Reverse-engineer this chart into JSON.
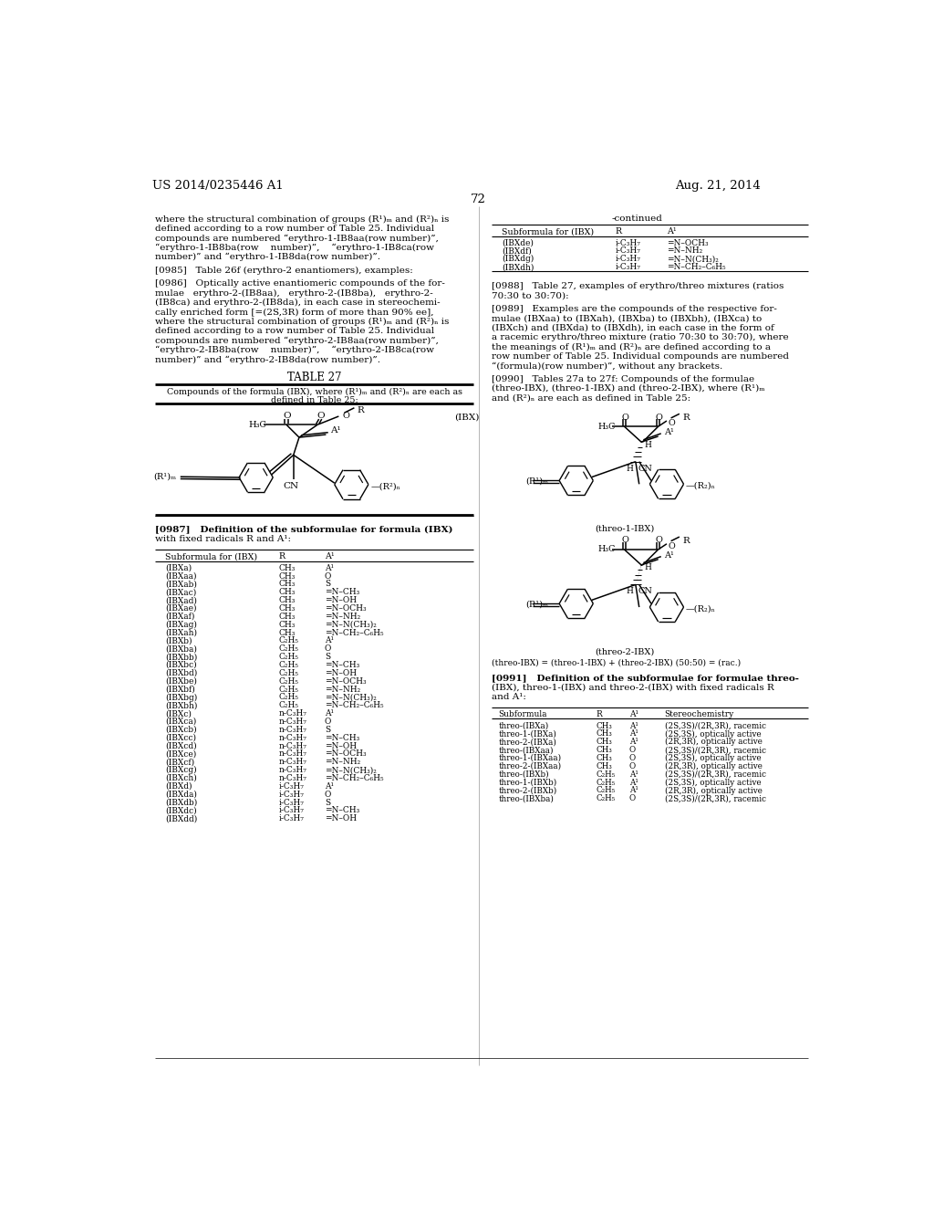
{
  "page_header_left": "US 2014/0235446 A1",
  "page_header_right": "Aug. 21, 2014",
  "page_number": "72",
  "background_color": "#ffffff",
  "left_paragraphs": [
    "where the structural combination of groups (R¹)ₘ and (R²)ₙ is",
    "defined according to a row number of Table 25. Individual",
    "compounds are numbered “erythro-1-IB8aa(row number)”,",
    "“erythro-1-IB8ba(row    number)”,    “erythro-1-IB8ca(row",
    "number)” and “erythro-1-IB8da(row number)”."
  ],
  "ibx_table_rows": [
    [
      "(IBXa)",
      "CH₃",
      "A¹"
    ],
    [
      "(IBXaa)",
      "CH₃",
      "O"
    ],
    [
      "(IBXab)",
      "CH₃",
      "S"
    ],
    [
      "(IBXac)",
      "CH₃",
      "=N–CH₃"
    ],
    [
      "(IBXad)",
      "CH₃",
      "=N–OH"
    ],
    [
      "(IBXae)",
      "CH₃",
      "=N–OCH₃"
    ],
    [
      "(IBXaf)",
      "CH₃",
      "=N–NH₂"
    ],
    [
      "(IBXag)",
      "CH₃",
      "=N–N(CH₃)₂"
    ],
    [
      "(IBXah)",
      "CH₃",
      "=N–CH₂–C₆H₅"
    ],
    [
      "(IBXb)",
      "C₂H₅",
      "A¹"
    ],
    [
      "(IBXba)",
      "C₂H₅",
      "O"
    ],
    [
      "(IBXbb)",
      "C₂H₅",
      "S"
    ],
    [
      "(IBXbc)",
      "C₂H₅",
      "=N–CH₃"
    ],
    [
      "(IBXbd)",
      "C₂H₅",
      "=N–OH"
    ],
    [
      "(IBXbe)",
      "C₂H₅",
      "=N–OCH₃"
    ],
    [
      "(IBXbf)",
      "C₂H₅",
      "=N–NH₂"
    ],
    [
      "(IBXbg)",
      "C₂H₅",
      "=N–N(CH₃)₂"
    ],
    [
      "(IBXbh)",
      "C₂H₅",
      "=N–CH₂–C₆H₅"
    ],
    [
      "(IBXc)",
      "n-C₃H₇",
      "A¹"
    ],
    [
      "(IBXca)",
      "n-C₃H₇",
      "O"
    ],
    [
      "(IBXcb)",
      "n-C₃H₇",
      "S"
    ],
    [
      "(IBXcc)",
      "n-C₃H₇",
      "=N–CH₃"
    ],
    [
      "(IBXcd)",
      "n-C₃H₇",
      "=N–OH"
    ],
    [
      "(IBXce)",
      "n-C₃H₇",
      "=N–OCH₃"
    ],
    [
      "(IBXcf)",
      "n-C₃H₇",
      "=N–NH₂"
    ],
    [
      "(IBXcg)",
      "n-C₃H₇",
      "=N–N(CH₃)₂"
    ],
    [
      "(IBXch)",
      "n-C₃H₇",
      "=N–CH₂–C₆H₅"
    ],
    [
      "(IBXd)",
      "i-C₃H₇",
      "A¹"
    ],
    [
      "(IBXda)",
      "i-C₃H₇",
      "O"
    ],
    [
      "(IBXdb)",
      "i-C₃H₇",
      "S"
    ],
    [
      "(IBXdc)",
      "i-C₃H₇",
      "=N–CH₃"
    ],
    [
      "(IBXdd)",
      "i-C₃H₇",
      "=N–OH"
    ]
  ],
  "cont_table_rows": [
    [
      "(IBXde)",
      "i-C₃H₇",
      "=N–OCH₃"
    ],
    [
      "(IBXdf)",
      "i-C₃H₇",
      "=N–NH₂"
    ],
    [
      "(IBXdg)",
      "i-C₃H₇",
      "=N–N(CH₃)₂"
    ],
    [
      "(IBXdh)",
      "i-C₃H₇",
      "=N–CH₂–C₆H₅"
    ]
  ],
  "bottom_table_rows": [
    [
      "threo-(IBXa)",
      "CH₃",
      "A¹",
      "(2S,3S)/(2R,3R), racemic"
    ],
    [
      "threo-1-(IBXa)",
      "CH₃",
      "A¹",
      "(2S,3S), optically active"
    ],
    [
      "threo-2-(IBXa)",
      "CH₃",
      "A¹",
      "(2R,3R), optically active"
    ],
    [
      "threo-(IBXaa)",
      "CH₃",
      "O",
      "(2S,3S)/(2R,3R), racemic"
    ],
    [
      "threo-1-(IBXaa)",
      "CH₃",
      "O",
      "(2S,3S), optically active"
    ],
    [
      "threo-2-(IBXaa)",
      "CH₃",
      "O",
      "(2R,3R), optically active"
    ],
    [
      "threo-(IBXb)",
      "C₂H₅",
      "A¹",
      "(2S,3S)/(2R,3R), racemic"
    ],
    [
      "threo-1-(IBXb)",
      "C₂H₅",
      "A¹",
      "(2S,3S), optically active"
    ],
    [
      "threo-2-(IBXb)",
      "C₂H₅",
      "A¹",
      "(2R,3R), optically active"
    ],
    [
      "threo-(IBXba)",
      "C₂H₅",
      "O",
      "(2S,3S)/(2R,3R), racemic"
    ]
  ]
}
